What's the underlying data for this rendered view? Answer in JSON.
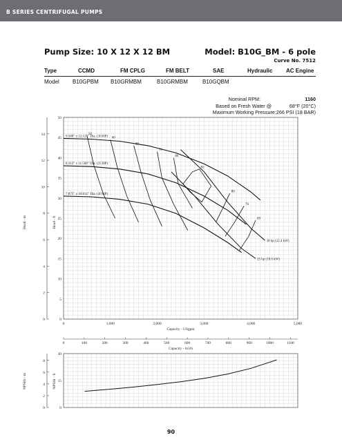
{
  "header": {
    "band_title": "B SERIES CENTRIFUGAL PUMPS"
  },
  "title": {
    "pump_size": "Pump Size: 10 X 12 X 12 BM",
    "model": "Model: B10G_BM - 6 pole",
    "curve_no": "Curve No. 7512"
  },
  "spec_table": {
    "headers": [
      "Type",
      "CCMD",
      "FM CPLG",
      "FM BELT",
      "SAE",
      "Hydraulic",
      "AC Engine"
    ],
    "values": [
      "Model",
      "B10GPBM",
      "B10GRMBM",
      "B10GRMBM",
      "B10GQBM",
      "",
      ""
    ]
  },
  "conditions": {
    "rpm_label": "Nominal RPM:",
    "rpm_value": "1160",
    "water_label": "Based on Fresh Water @",
    "water_value": "68°F (20°C)",
    "pressure_label": "Maximum Working Pressure:",
    "pressure_value": "266 PSI (18 BAR)"
  },
  "page_number": "90",
  "colors": {
    "band": "#6d6e71",
    "grid": "#cfcfcf",
    "curve": "#111111"
  },
  "chart_data": [
    {
      "type": "line",
      "name_role": "head-capacity",
      "xlabel": "Capacity - USgpm",
      "ylabel_left": "Head - m",
      "ylabel_right": "Head - ft",
      "xlim": [
        0,
        5000
      ],
      "ylim_ft": [
        0,
        50
      ],
      "x_ticks": [
        0,
        1000,
        2000,
        3000,
        4000,
        5000
      ],
      "x_tick_labels": [
        "0",
        "1,000",
        "2,000",
        "3,000",
        "4,000",
        "5,000"
      ],
      "y_ticks_ft": [
        0,
        5,
        10,
        15,
        20,
        25,
        30,
        35,
        40,
        45,
        50
      ],
      "y_ticks_m": [
        0,
        2,
        4,
        6,
        8,
        10,
        12,
        14
      ],
      "x2_ticks_m3h": [
        0,
        100,
        200,
        300,
        400,
        500,
        600,
        700,
        800,
        900,
        1000,
        1100
      ],
      "x2label": "Capacity - m3/h",
      "grid": true,
      "series": [
        {
          "name": "9.500\" x 12.125\" Dia. (30 HP)",
          "x": [
            0,
            600,
            1200,
            1800,
            2400,
            3000,
            3500,
            4000,
            4200
          ],
          "y": [
            44.8,
            44.6,
            44.1,
            43.0,
            41.2,
            38.5,
            35.5,
            31.5,
            29.5
          ]
        },
        {
          "name": "8.312\" x 11.500\" Dia. (25 HP)",
          "x": [
            0,
            600,
            1200,
            1800,
            2400,
            3000,
            3500,
            3900
          ],
          "y": [
            38.0,
            37.8,
            37.2,
            36.0,
            33.8,
            30.5,
            27.0,
            23.5
          ]
        },
        {
          "name": "7.875\" x 10.812\" Dia. (20 HP)",
          "x": [
            0,
            600,
            1200,
            1800,
            2400,
            3000,
            3500,
            3800
          ],
          "y": [
            30.5,
            30.3,
            29.7,
            28.5,
            26.2,
            22.6,
            19.0,
            16.5
          ]
        }
      ],
      "efficiency_labels": [
        "50",
        "60",
        "69",
        "76",
        "80",
        "82",
        "82",
        "80",
        "76",
        "69",
        "69"
      ],
      "efficiency_curves": [
        {
          "label": "50",
          "x": [
            500,
            650,
            850,
            1100
          ],
          "y": [
            45.5,
            38.0,
            31.0,
            25.0
          ]
        },
        {
          "label": "60",
          "x": [
            1000,
            1150,
            1350,
            1600
          ],
          "y": [
            44.5,
            37.5,
            30.5,
            24.0
          ]
        },
        {
          "label": "69",
          "x": [
            1500,
            1650,
            1850,
            2100
          ],
          "y": [
            43.0,
            36.5,
            29.5,
            23.0
          ]
        },
        {
          "label": "76",
          "x": [
            2000,
            2100,
            2350,
            2650
          ],
          "y": [
            41.5,
            35.0,
            28.5,
            22.0
          ]
        },
        {
          "label": "80",
          "x": [
            2350,
            2450,
            2750
          ],
          "y": [
            40.0,
            33.5,
            27.5
          ]
        },
        {
          "label": "82",
          "x": [
            2900,
            3150,
            2950,
            2700,
            2550,
            2750,
            2900
          ],
          "y": [
            37.2,
            33.0,
            29.0,
            31.5,
            33.5,
            36.5,
            37.2
          ]
        },
        {
          "label": "80",
          "x": [
            3550,
            3400,
            3250
          ],
          "y": [
            31.2,
            27.5,
            24.0
          ]
        },
        {
          "label": "76",
          "x": [
            3850,
            3650,
            3450
          ],
          "y": [
            28.0,
            24.0,
            20.5
          ]
        },
        {
          "label": "69",
          "x": [
            4100,
            3950,
            3750
          ],
          "y": [
            24.5,
            20.5,
            17.0
          ]
        }
      ],
      "power_curves": [
        {
          "label": "30 hp (22.4 kW)",
          "x": [
            2500,
            3000,
            3500,
            4000,
            4300
          ],
          "y": [
            42.0,
            36.5,
            29.0,
            22.5,
            19.5
          ]
        },
        {
          "label": "25 hp (18.6 kW)",
          "x": [
            2300,
            2800,
            3300,
            3800,
            4100
          ],
          "y": [
            36.5,
            30.5,
            23.5,
            17.5,
            15.0
          ]
        }
      ],
      "power_labels": [
        "30 hp (22.4 kW)",
        "25 hp (18.6 kW)"
      ],
      "series_labels": [
        "69",
        "50",
        "60",
        "69",
        "76",
        "80",
        "82",
        "82",
        "80",
        "76"
      ]
    },
    {
      "type": "line",
      "name_role": "npshr",
      "ylabel_left": "NPSHr - m",
      "ylabel_right": "NPSHr - ft",
      "xlim": [
        0,
        5000
      ],
      "ylim_ft": [
        0,
        30
      ],
      "y_ticks_ft": [
        0,
        15,
        30
      ],
      "y_ticks_m": [
        0,
        2,
        4,
        6,
        8
      ],
      "grid": true,
      "series": [
        {
          "name": "NPSHr",
          "x": [
            450,
            1000,
            1500,
            2000,
            2500,
            3000,
            3500,
            4000,
            4550
          ],
          "y": [
            9.0,
            10.2,
            11.4,
            12.8,
            14.3,
            16.2,
            18.6,
            21.8,
            26.5
          ]
        }
      ]
    }
  ]
}
